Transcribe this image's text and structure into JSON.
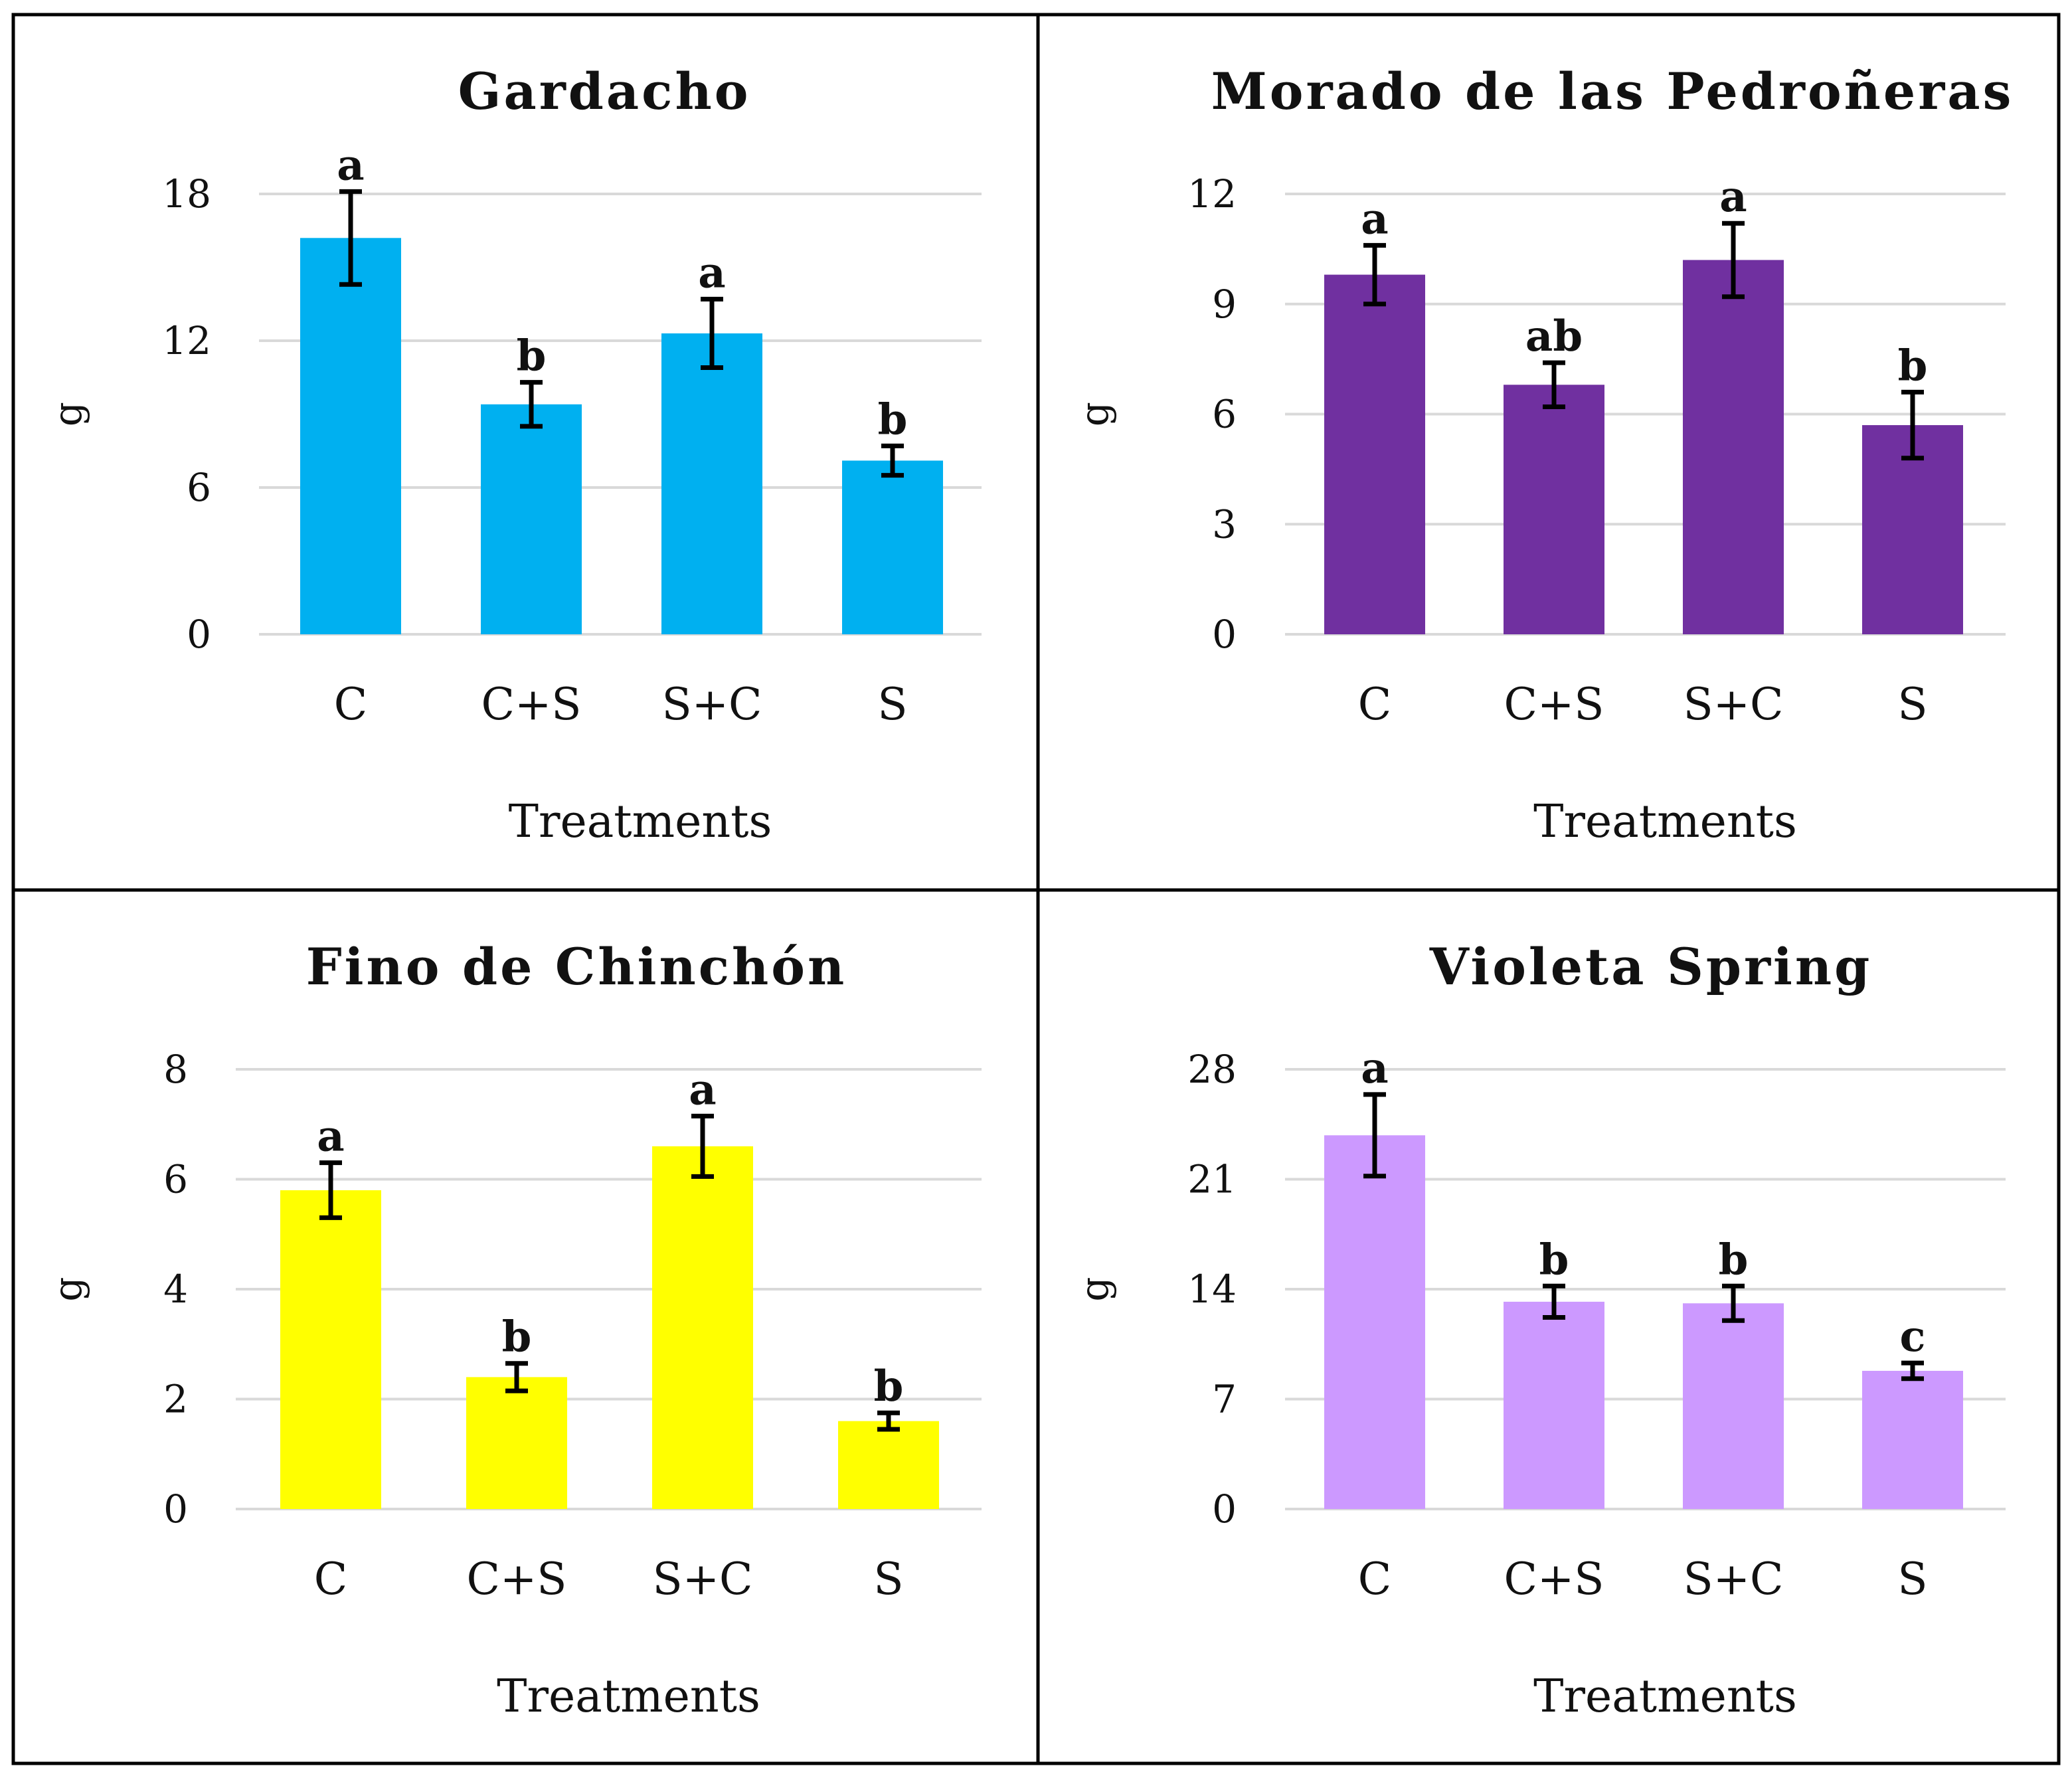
{
  "chart_data": [
    {
      "type": "bar",
      "title": "Gardacho",
      "xlabel": "Treatments",
      "ylabel": "g",
      "ylim": [
        0,
        18
      ],
      "yticks": [
        0,
        6,
        12,
        18
      ],
      "color": "#00B0F0",
      "categories": [
        "C",
        "C+S",
        "S+C",
        "S"
      ],
      "values": [
        16.2,
        9.4,
        12.3,
        7.1
      ],
      "errors": [
        1.9,
        0.9,
        1.4,
        0.6
      ],
      "letters": [
        "a",
        "b",
        "a",
        "b"
      ]
    },
    {
      "type": "bar",
      "title": "Morado de las Pedroñeras",
      "xlabel": "Treatments",
      "ylabel": "g",
      "ylim": [
        0,
        12
      ],
      "yticks": [
        0,
        3,
        6,
        9,
        12
      ],
      "color": "#7030A0",
      "categories": [
        "C",
        "C+S",
        "S+C",
        "S"
      ],
      "values": [
        9.8,
        6.8,
        10.2,
        5.7
      ],
      "errors": [
        0.8,
        0.6,
        1.0,
        0.9
      ],
      "letters": [
        "a",
        "ab",
        "a",
        "b"
      ]
    },
    {
      "type": "bar",
      "title": "Fino de Chinchón",
      "xlabel": "Treatments",
      "ylabel": "g",
      "ylim": [
        0,
        8
      ],
      "yticks": [
        0,
        2,
        4,
        6,
        8
      ],
      "color": "#FFFF00",
      "categories": [
        "C",
        "C+S",
        "S+C",
        "S"
      ],
      "values": [
        5.8,
        2.4,
        6.6,
        1.6
      ],
      "errors": [
        0.5,
        0.25,
        0.55,
        0.15
      ],
      "letters": [
        "a",
        "b",
        "a",
        "b"
      ]
    },
    {
      "type": "bar",
      "title": "Violeta Spring",
      "xlabel": "Treatments",
      "ylabel": "g",
      "ylim": [
        0,
        28
      ],
      "yticks": [
        0,
        7,
        14,
        21,
        28
      ],
      "color": "#CC99FF",
      "categories": [
        "C",
        "C+S",
        "S+C",
        "S"
      ],
      "values": [
        23.8,
        13.2,
        13.1,
        8.8
      ],
      "errors": [
        2.6,
        1.0,
        1.1,
        0.5
      ],
      "letters": [
        "a",
        "b",
        "b",
        "c"
      ]
    }
  ]
}
